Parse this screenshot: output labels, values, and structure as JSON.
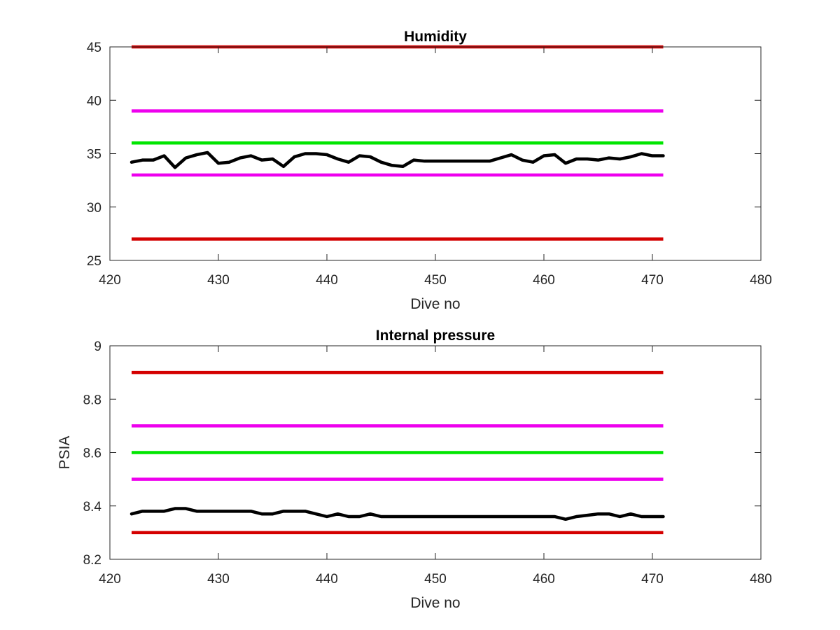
{
  "chart_data": [
    {
      "type": "line",
      "title": "Humidity",
      "xlabel": "Dive no",
      "ylabel": "",
      "xlim": [
        420,
        480
      ],
      "ylim": [
        25,
        45
      ],
      "xticks": [
        "420",
        "430",
        "440",
        "450",
        "460",
        "470",
        "480"
      ],
      "yticks": [
        "25",
        "30",
        "35",
        "40",
        "45"
      ],
      "grid": false,
      "legend": "none",
      "thresholds": [
        {
          "value": 45,
          "color": "#d40000",
          "x_range": [
            422,
            471
          ]
        },
        {
          "value": 39,
          "color": "#ee00ee",
          "x_range": [
            422,
            471
          ]
        },
        {
          "value": 36,
          "color": "#00e600",
          "x_range": [
            422,
            471
          ]
        },
        {
          "value": 33,
          "color": "#ee00ee",
          "x_range": [
            422,
            471
          ]
        },
        {
          "value": 27,
          "color": "#d40000",
          "x_range": [
            422,
            471
          ]
        }
      ],
      "series": [
        {
          "color": "#000000",
          "x": [
            422,
            423,
            424,
            425,
            426,
            427,
            428,
            429,
            430,
            431,
            432,
            433,
            434,
            435,
            436,
            437,
            438,
            439,
            440,
            441,
            442,
            443,
            444,
            445,
            446,
            447,
            448,
            449,
            450,
            451,
            452,
            453,
            454,
            455,
            456,
            457,
            458,
            459,
            460,
            461,
            462,
            463,
            464,
            465,
            466,
            467,
            468,
            469,
            470,
            471
          ],
          "y": [
            34.2,
            34.4,
            34.4,
            34.8,
            33.7,
            34.6,
            34.9,
            35.1,
            34.1,
            34.2,
            34.6,
            34.8,
            34.4,
            34.5,
            33.8,
            34.7,
            35.0,
            35.0,
            34.9,
            34.5,
            34.2,
            34.8,
            34.7,
            34.2,
            33.9,
            33.8,
            34.4,
            34.3,
            34.3,
            34.3,
            34.3,
            34.3,
            34.3,
            34.3,
            34.6,
            34.9,
            34.4,
            34.2,
            34.8,
            34.9,
            34.1,
            34.5,
            34.5,
            34.4,
            34.6,
            34.5,
            34.7,
            35.0,
            34.8,
            34.8
          ]
        }
      ]
    },
    {
      "type": "line",
      "title": "Internal pressure",
      "xlabel": "Dive no",
      "ylabel": "PSIA",
      "xlim": [
        420,
        480
      ],
      "ylim": [
        8.2,
        9
      ],
      "xticks": [
        "420",
        "430",
        "440",
        "450",
        "460",
        "470",
        "480"
      ],
      "yticks": [
        "8.2",
        "8.4",
        "8.6",
        "8.8",
        "9"
      ],
      "grid": false,
      "legend": "none",
      "thresholds": [
        {
          "value": 8.9,
          "color": "#d40000",
          "x_range": [
            422,
            471
          ]
        },
        {
          "value": 8.7,
          "color": "#ee00ee",
          "x_range": [
            422,
            471
          ]
        },
        {
          "value": 8.6,
          "color": "#00e600",
          "x_range": [
            422,
            471
          ]
        },
        {
          "value": 8.5,
          "color": "#ee00ee",
          "x_range": [
            422,
            471
          ]
        },
        {
          "value": 8.3,
          "color": "#d40000",
          "x_range": [
            422,
            471
          ]
        }
      ],
      "series": [
        {
          "color": "#000000",
          "x": [
            422,
            423,
            424,
            425,
            426,
            427,
            428,
            429,
            430,
            431,
            432,
            433,
            434,
            435,
            436,
            437,
            438,
            439,
            440,
            441,
            442,
            443,
            444,
            445,
            446,
            447,
            448,
            449,
            450,
            451,
            452,
            453,
            454,
            455,
            456,
            457,
            458,
            459,
            460,
            461,
            462,
            463,
            464,
            465,
            466,
            467,
            468,
            469,
            470,
            471
          ],
          "y": [
            8.37,
            8.38,
            8.38,
            8.38,
            8.39,
            8.39,
            8.38,
            8.38,
            8.38,
            8.38,
            8.38,
            8.38,
            8.37,
            8.37,
            8.38,
            8.38,
            8.38,
            8.37,
            8.36,
            8.37,
            8.36,
            8.36,
            8.37,
            8.36,
            8.36,
            8.36,
            8.36,
            8.36,
            8.36,
            8.36,
            8.36,
            8.36,
            8.36,
            8.36,
            8.36,
            8.36,
            8.36,
            8.36,
            8.36,
            8.36,
            8.35,
            8.36,
            8.365,
            8.37,
            8.37,
            8.36,
            8.37,
            8.36,
            8.36,
            8.36
          ]
        }
      ]
    }
  ]
}
